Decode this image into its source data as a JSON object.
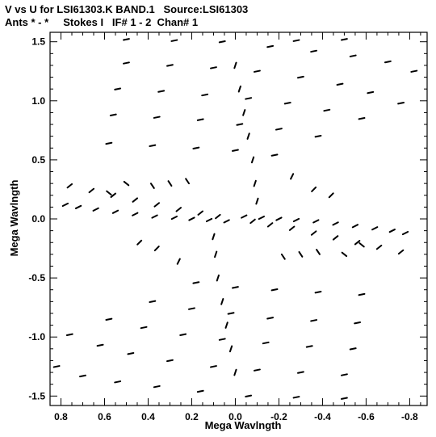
{
  "header": {
    "line1": "V vs U for LSI61303.K BAND.1   Source:LSI61303",
    "line2": "Ants * - *     Stokes I   IF# 1 - 2  Chan# 1"
  },
  "chart_data": {
    "type": "scatter",
    "title": "V vs U for LSI61303.K BAND.1   Source:LSI61303",
    "subtitle": "Ants * - *     Stokes I   IF# 1 - 2  Chan# 1",
    "xlabel": "Mega Wavlngth",
    "ylabel": "Mega Wavlngth",
    "xlim": [
      0.85,
      -0.88
    ],
    "ylim": [
      -1.58,
      1.58
    ],
    "x_reversed": true,
    "grid": false,
    "legend": "none",
    "x_ticks": [
      0.8,
      0.6,
      0.4,
      0.2,
      0.0,
      -0.2,
      -0.4,
      -0.6,
      -0.8
    ],
    "x_tick_labels": [
      "0.8",
      "0.6",
      "0.4",
      "0.2",
      "0.0",
      "-0.2",
      "-0.4",
      "-0.6",
      "-0.8"
    ],
    "y_ticks": [
      1.5,
      1.0,
      0.5,
      0.0,
      -0.5,
      -1.0,
      -1.5
    ],
    "y_tick_labels": [
      "1.5",
      "1.0",
      "0.5",
      "0.0",
      "-0.5",
      "-1.0",
      "-1.5"
    ],
    "series": [
      {
        "marker_color": "#000000",
        "points": [
          {
            "u": 0.78,
            "v": 0.12,
            "slope": 0.5
          },
          {
            "u": 0.72,
            "v": 0.1,
            "slope": 0.5
          },
          {
            "u": 0.64,
            "v": 0.08,
            "slope": 0.5
          },
          {
            "u": 0.55,
            "v": 0.06,
            "slope": 0.5
          },
          {
            "u": 0.46,
            "v": 0.04,
            "slope": 0.5
          },
          {
            "u": 0.37,
            "v": 0.02,
            "slope": 0.5
          },
          {
            "u": 0.28,
            "v": 0.01,
            "slope": 0.5
          },
          {
            "u": 0.2,
            "v": 0.0,
            "slope": 0.5
          },
          {
            "u": 0.12,
            "v": -0.01,
            "slope": 0.5
          },
          {
            "u": 0.04,
            "v": -0.02,
            "slope": 0.5
          },
          {
            "u": -0.78,
            "v": -0.12,
            "slope": 0.5
          },
          {
            "u": -0.72,
            "v": -0.1,
            "slope": 0.5
          },
          {
            "u": -0.64,
            "v": -0.08,
            "slope": 0.5
          },
          {
            "u": -0.55,
            "v": -0.06,
            "slope": 0.5
          },
          {
            "u": -0.46,
            "v": -0.04,
            "slope": 0.5
          },
          {
            "u": -0.37,
            "v": -0.02,
            "slope": 0.5
          },
          {
            "u": -0.28,
            "v": -0.01,
            "slope": 0.5
          },
          {
            "u": -0.2,
            "v": 0.0,
            "slope": 0.5
          },
          {
            "u": -0.12,
            "v": 0.01,
            "slope": 0.5
          },
          {
            "u": -0.04,
            "v": 0.02,
            "slope": 0.5
          },
          {
            "u": 0.76,
            "v": 0.28,
            "slope": 0.8
          },
          {
            "u": 0.66,
            "v": 0.24,
            "slope": 0.8
          },
          {
            "u": 0.56,
            "v": 0.2,
            "slope": 0.8
          },
          {
            "u": 0.46,
            "v": 0.16,
            "slope": 0.8
          },
          {
            "u": 0.36,
            "v": 0.12,
            "slope": 0.8
          },
          {
            "u": 0.26,
            "v": 0.08,
            "slope": 0.8
          },
          {
            "u": 0.16,
            "v": 0.05,
            "slope": 0.8
          },
          {
            "u": 0.08,
            "v": 0.02,
            "slope": 0.8
          },
          {
            "u": -0.76,
            "v": -0.28,
            "slope": 0.8
          },
          {
            "u": -0.66,
            "v": -0.24,
            "slope": 0.8
          },
          {
            "u": -0.56,
            "v": -0.2,
            "slope": 0.8
          },
          {
            "u": -0.46,
            "v": -0.16,
            "slope": 0.8
          },
          {
            "u": -0.36,
            "v": -0.12,
            "slope": 0.8
          },
          {
            "u": -0.26,
            "v": -0.08,
            "slope": 0.8
          },
          {
            "u": -0.16,
            "v": -0.05,
            "slope": 0.8
          },
          {
            "u": -0.08,
            "v": -0.02,
            "slope": 0.8
          },
          {
            "u": 0.5,
            "v": 1.52,
            "slope": 0.2
          },
          {
            "u": 0.28,
            "v": 1.51,
            "slope": 0.2
          },
          {
            "u": 0.06,
            "v": 1.5,
            "slope": 0.2
          },
          {
            "u": -0.16,
            "v": 1.46,
            "slope": 0.2
          },
          {
            "u": -0.36,
            "v": 1.42,
            "slope": 0.2
          },
          {
            "u": -0.54,
            "v": 1.38,
            "slope": 0.2
          },
          {
            "u": -0.7,
            "v": 1.33,
            "slope": 0.2
          },
          {
            "u": -0.82,
            "v": 1.25,
            "slope": 0.2
          },
          {
            "u": 0.5,
            "v": 1.32,
            "slope": 0.2
          },
          {
            "u": 0.3,
            "v": 1.3,
            "slope": 0.2
          },
          {
            "u": 0.1,
            "v": 1.28,
            "slope": 0.2
          },
          {
            "u": -0.1,
            "v": 1.25,
            "slope": 0.2
          },
          {
            "u": -0.3,
            "v": 1.2,
            "slope": 0.2
          },
          {
            "u": -0.48,
            "v": 1.14,
            "slope": 0.2
          },
          {
            "u": -0.62,
            "v": 1.07,
            "slope": 0.2
          },
          {
            "u": -0.76,
            "v": 0.98,
            "slope": 0.2
          },
          {
            "u": 0.54,
            "v": 1.1,
            "slope": 0.2
          },
          {
            "u": 0.34,
            "v": 1.08,
            "slope": 0.2
          },
          {
            "u": 0.14,
            "v": 1.05,
            "slope": 0.2
          },
          {
            "u": -0.06,
            "v": 1.02,
            "slope": 0.2
          },
          {
            "u": -0.24,
            "v": 0.98,
            "slope": 0.2
          },
          {
            "u": -0.42,
            "v": 0.92,
            "slope": 0.2
          },
          {
            "u": -0.58,
            "v": 0.85,
            "slope": 0.2
          },
          {
            "u": 0.56,
            "v": 0.88,
            "slope": 0.2
          },
          {
            "u": 0.36,
            "v": 0.86,
            "slope": 0.2
          },
          {
            "u": 0.16,
            "v": 0.84,
            "slope": 0.2
          },
          {
            "u": -0.02,
            "v": 0.8,
            "slope": 0.2
          },
          {
            "u": -0.2,
            "v": 0.76,
            "slope": 0.2
          },
          {
            "u": -0.38,
            "v": 0.7,
            "slope": 0.2
          },
          {
            "u": 0.58,
            "v": 0.64,
            "slope": 0.2
          },
          {
            "u": 0.38,
            "v": 0.62,
            "slope": 0.2
          },
          {
            "u": 0.18,
            "v": 0.6,
            "slope": 0.2
          },
          {
            "u": 0.0,
            "v": 0.58,
            "slope": 0.2
          },
          {
            "u": -0.18,
            "v": 0.54,
            "slope": 0.2
          },
          {
            "u": -0.5,
            "v": 1.52,
            "slope": 0.2
          },
          {
            "u": -0.28,
            "v": 1.51,
            "slope": 0.2
          },
          {
            "u": -0.06,
            "v": -1.5,
            "slope": 0.2
          },
          {
            "u": -0.5,
            "v": -1.52,
            "slope": 0.2
          },
          {
            "u": -0.28,
            "v": -1.51,
            "slope": 0.2
          },
          {
            "u": 0.16,
            "v": -1.46,
            "slope": 0.2
          },
          {
            "u": 0.36,
            "v": -1.42,
            "slope": 0.2
          },
          {
            "u": 0.54,
            "v": -1.38,
            "slope": 0.2
          },
          {
            "u": 0.7,
            "v": -1.33,
            "slope": 0.2
          },
          {
            "u": 0.82,
            "v": -1.25,
            "slope": 0.2
          },
          {
            "u": -0.5,
            "v": -1.32,
            "slope": 0.2
          },
          {
            "u": -0.3,
            "v": -1.3,
            "slope": 0.2
          },
          {
            "u": -0.1,
            "v": -1.28,
            "slope": 0.2
          },
          {
            "u": 0.1,
            "v": -1.25,
            "slope": 0.2
          },
          {
            "u": 0.3,
            "v": -1.2,
            "slope": 0.2
          },
          {
            "u": 0.48,
            "v": -1.14,
            "slope": 0.2
          },
          {
            "u": 0.62,
            "v": -1.07,
            "slope": 0.2
          },
          {
            "u": 0.76,
            "v": -0.98,
            "slope": 0.2
          },
          {
            "u": -0.54,
            "v": -1.1,
            "slope": 0.2
          },
          {
            "u": -0.34,
            "v": -1.08,
            "slope": 0.2
          },
          {
            "u": -0.14,
            "v": -1.05,
            "slope": 0.2
          },
          {
            "u": 0.06,
            "v": -1.02,
            "slope": 0.2
          },
          {
            "u": 0.24,
            "v": -0.98,
            "slope": 0.2
          },
          {
            "u": 0.42,
            "v": -0.92,
            "slope": 0.2
          },
          {
            "u": 0.58,
            "v": -0.85,
            "slope": 0.2
          },
          {
            "u": -0.56,
            "v": -0.88,
            "slope": 0.2
          },
          {
            "u": -0.36,
            "v": -0.86,
            "slope": 0.2
          },
          {
            "u": -0.16,
            "v": -0.84,
            "slope": 0.2
          },
          {
            "u": 0.02,
            "v": -0.8,
            "slope": 0.2
          },
          {
            "u": 0.2,
            "v": -0.76,
            "slope": 0.2
          },
          {
            "u": 0.38,
            "v": -0.7,
            "slope": 0.2
          },
          {
            "u": -0.58,
            "v": -0.64,
            "slope": 0.2
          },
          {
            "u": -0.38,
            "v": -0.62,
            "slope": 0.2
          },
          {
            "u": -0.18,
            "v": -0.6,
            "slope": 0.2
          },
          {
            "u": 0.0,
            "v": -0.58,
            "slope": 0.2
          },
          {
            "u": 0.18,
            "v": -0.54,
            "slope": 0.2
          },
          {
            "u": 0.0,
            "v": 1.3,
            "slope": 3.0
          },
          {
            "u": -0.02,
            "v": 1.1,
            "slope": 3.0
          },
          {
            "u": -0.04,
            "v": 0.9,
            "slope": 3.0
          },
          {
            "u": -0.06,
            "v": 0.7,
            "slope": 3.0
          },
          {
            "u": -0.08,
            "v": 0.5,
            "slope": 3.0
          },
          {
            "u": -0.09,
            "v": 0.3,
            "slope": 3.0
          },
          {
            "u": -0.1,
            "v": 0.15,
            "slope": 3.0
          },
          {
            "u": 0.0,
            "v": -1.3,
            "slope": 3.0
          },
          {
            "u": 0.02,
            "v": -1.1,
            "slope": 3.0
          },
          {
            "u": 0.04,
            "v": -0.9,
            "slope": 3.0
          },
          {
            "u": 0.06,
            "v": -0.7,
            "slope": 3.0
          },
          {
            "u": 0.08,
            "v": -0.5,
            "slope": 3.0
          },
          {
            "u": 0.09,
            "v": -0.3,
            "slope": 3.0
          },
          {
            "u": 0.1,
            "v": -0.15,
            "slope": 3.0
          },
          {
            "u": 0.38,
            "v": 0.28,
            "slope": -1.5
          },
          {
            "u": 0.3,
            "v": 0.3,
            "slope": -1.5
          },
          {
            "u": 0.22,
            "v": 0.32,
            "slope": -1.5
          },
          {
            "u": -0.38,
            "v": -0.28,
            "slope": -1.5
          },
          {
            "u": -0.3,
            "v": -0.3,
            "slope": -1.5
          },
          {
            "u": -0.22,
            "v": -0.32,
            "slope": -1.5
          },
          {
            "u": 0.44,
            "v": -0.2,
            "slope": 1.0
          },
          {
            "u": 0.36,
            "v": -0.25,
            "slope": 1.0
          },
          {
            "u": -0.44,
            "v": 0.2,
            "slope": 1.0
          },
          {
            "u": -0.36,
            "v": 0.25,
            "slope": 1.0
          },
          {
            "u": 0.5,
            "v": 0.3,
            "slope": -0.8
          },
          {
            "u": 0.58,
            "v": 0.22,
            "slope": -0.8
          },
          {
            "u": -0.5,
            "v": -0.3,
            "slope": -0.8
          },
          {
            "u": -0.58,
            "v": -0.22,
            "slope": -0.8
          },
          {
            "u": 0.26,
            "v": -0.36,
            "slope": 2.0
          },
          {
            "u": -0.26,
            "v": 0.36,
            "slope": 2.0
          }
        ]
      }
    ]
  }
}
